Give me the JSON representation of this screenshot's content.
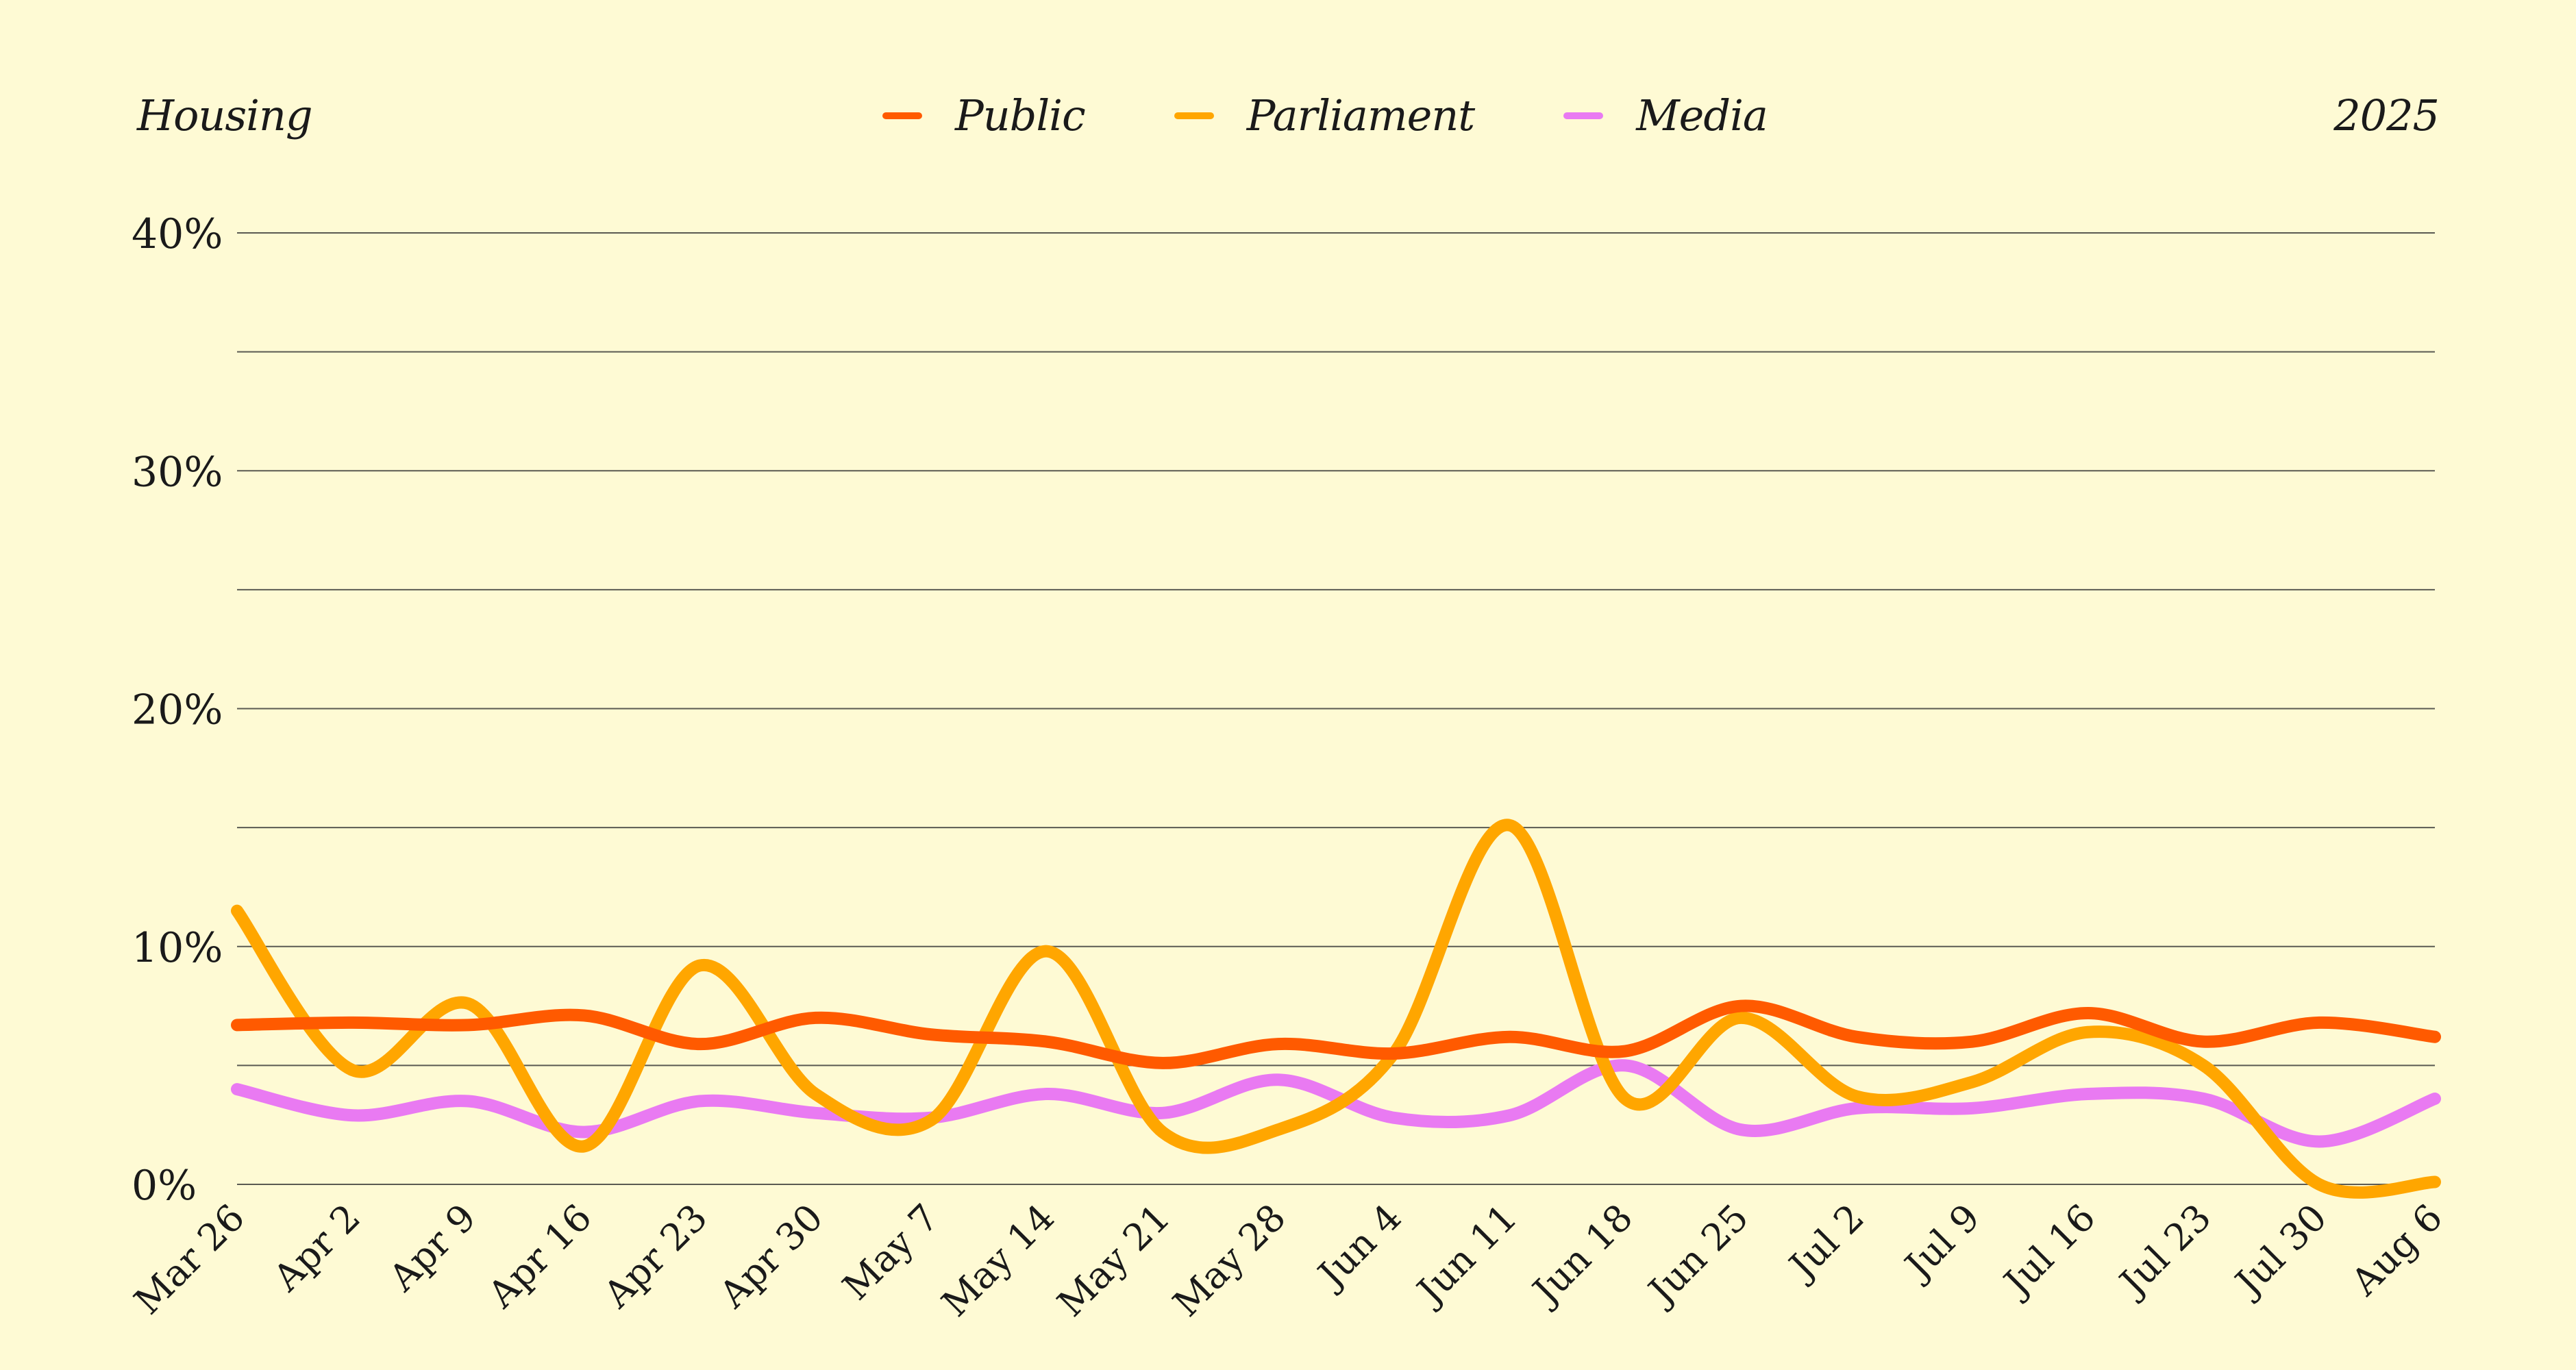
{
  "header": {
    "topic": "Housing",
    "year": "2025"
  },
  "colors": {
    "background": "#fefad4",
    "Public": "#ff5a00",
    "Parliament": "#ffa600",
    "Media": "#e97af2"
  },
  "chart_data": {
    "type": "line",
    "x": [
      "Mar 26",
      "Apr 2",
      "Apr 9",
      "Apr 16",
      "Apr 23",
      "Apr 30",
      "May 7",
      "May 14",
      "May 21",
      "May 28",
      "Jun 4",
      "Jun 11",
      "Jun 18",
      "Jun 25",
      "Jul 2",
      "Jul 9",
      "Jul 16",
      "Jul 23",
      "Jul 30",
      "Aug 6"
    ],
    "ylim": [
      0,
      40
    ],
    "yticks": [
      0,
      10,
      20,
      30,
      40
    ],
    "ytick_labels": [
      "0%",
      "10%",
      "20%",
      "30%",
      "40%"
    ],
    "grid": true,
    "legend": "top-center",
    "series": [
      {
        "name": "Public",
        "color": "#ff5a00",
        "values": [
          6.7,
          6.8,
          6.7,
          7.1,
          5.9,
          7.0,
          6.3,
          6.0,
          5.1,
          5.9,
          5.5,
          6.2,
          5.6,
          7.5,
          6.2,
          6.0,
          7.2,
          6.0,
          6.8,
          6.2
        ]
      },
      {
        "name": "Parliament",
        "color": "#ffa600",
        "values": [
          11.5,
          4.8,
          7.6,
          1.6,
          9.2,
          3.8,
          2.7,
          9.8,
          2.2,
          2.3,
          5.5,
          15.1,
          3.6,
          7.0,
          3.7,
          4.3,
          6.4,
          5.0,
          0.0,
          0.1
        ]
      },
      {
        "name": "Media",
        "color": "#e97af2",
        "values": [
          4.0,
          2.9,
          3.5,
          2.2,
          3.5,
          3.0,
          2.8,
          3.8,
          3.0,
          4.4,
          2.8,
          2.9,
          5.0,
          2.3,
          3.2,
          3.2,
          3.8,
          3.6,
          1.8,
          3.6
        ]
      }
    ]
  }
}
